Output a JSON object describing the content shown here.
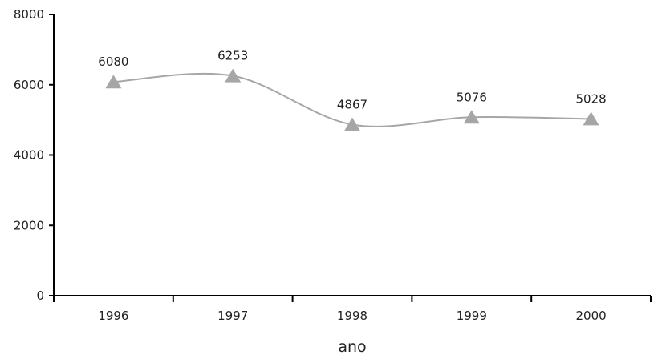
{
  "chart_data": {
    "type": "line",
    "title": "",
    "xlabel": "ano",
    "ylabel": "",
    "categories": [
      "1996",
      "1997",
      "1998",
      "1999",
      "2000"
    ],
    "series": [
      {
        "values": [
          6080,
          6253,
          4867,
          5076,
          5028
        ],
        "color": "#a6a6a6",
        "marker": "triangle"
      }
    ],
    "data_labels": [
      "6080",
      "6253",
      "4867",
      "5076",
      "5028"
    ],
    "ylim": [
      0,
      8000
    ],
    "yticks": [
      "0",
      "2000",
      "4000",
      "6000",
      "8000"
    ],
    "grid": false,
    "smooth": true,
    "legend": "none"
  }
}
